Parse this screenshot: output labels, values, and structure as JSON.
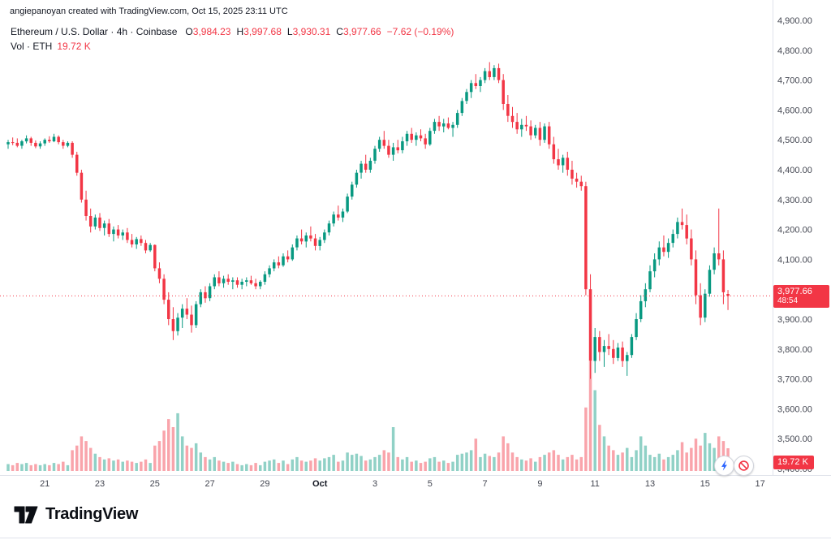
{
  "attribution": "angiepanoyan created with TradingView.com, Oct 15, 2025 23:11 UTC",
  "legend": {
    "series_title": "Ethereum / U.S. Dollar · 4h · Coinbase",
    "ohlc": {
      "o_label": "O",
      "o": "3,984.23",
      "h_label": "H",
      "h": "3,997.68",
      "l_label": "L",
      "l": "3,930.31",
      "c_label": "C",
      "c": "3,977.66",
      "change": "−7.62 (−0.19%)"
    },
    "volume_label": "Vol · ETH",
    "volume_value": "19.72 K"
  },
  "price_axis": {
    "labels": [
      "4,900.00",
      "4,800.00",
      "4,700.00",
      "4,600.00",
      "4,500.00",
      "4,400.00",
      "4,300.00",
      "4,200.00",
      "4,100.00",
      "4,000.00",
      "3,900.00",
      "3,800.00",
      "3,700.00",
      "3,600.00",
      "3,500.00",
      "3,400.00"
    ],
    "max": 4900,
    "min": 3400
  },
  "time_axis": [
    {
      "label": "21",
      "idx": 8
    },
    {
      "label": "23",
      "idx": 20
    },
    {
      "label": "25",
      "idx": 32
    },
    {
      "label": "27",
      "idx": 44
    },
    {
      "label": "29",
      "idx": 56
    },
    {
      "label": "Oct",
      "idx": 68,
      "bold": true
    },
    {
      "label": "3",
      "idx": 80
    },
    {
      "label": "5",
      "idx": 92
    },
    {
      "label": "7",
      "idx": 104
    },
    {
      "label": "9",
      "idx": 116
    },
    {
      "label": "11",
      "idx": 128
    },
    {
      "label": "13",
      "idx": 140
    },
    {
      "label": "15",
      "idx": 152
    },
    {
      "label": "17",
      "idx": 164
    }
  ],
  "price_badge": {
    "price": "3,977.66",
    "countdown": "48:54"
  },
  "volume_badge": "19.72 K",
  "footer": {
    "brand": "TradingView"
  },
  "colors": {
    "up": "#089981",
    "down": "#f23645",
    "axis_text": "#434651",
    "axis_line": "#e0e3eb",
    "badge": "#f23645"
  },
  "chart_data": {
    "type": "candlestick",
    "symbol": "Ethereum / U.S. Dollar",
    "exchange": "Coinbase",
    "interval": "4h",
    "volume_unit": "ETH",
    "current": {
      "open": 3984.23,
      "high": 3997.68,
      "low": 3930.31,
      "close": 3977.66,
      "change": -7.62,
      "change_pct": -0.19,
      "volume_k": 19.72
    },
    "price_range": [
      3400,
      4900
    ],
    "candle_format": [
      "open",
      "high",
      "low",
      "close",
      "volume_k_eth"
    ],
    "candles": [
      [
        4485,
        4500,
        4470,
        4492,
        6
      ],
      [
        4492,
        4508,
        4482,
        4490,
        5
      ],
      [
        4490,
        4505,
        4475,
        4480,
        7
      ],
      [
        4480,
        4500,
        4470,
        4495,
        6
      ],
      [
        4495,
        4515,
        4488,
        4505,
        7
      ],
      [
        4505,
        4510,
        4480,
        4490,
        5
      ],
      [
        4490,
        4498,
        4472,
        4478,
        6
      ],
      [
        4478,
        4495,
        4470,
        4488,
        5
      ],
      [
        4488,
        4505,
        4480,
        4500,
        6
      ],
      [
        4500,
        4512,
        4490,
        4495,
        5
      ],
      [
        4495,
        4520,
        4492,
        4510,
        7
      ],
      [
        4510,
        4515,
        4485,
        4492,
        6
      ],
      [
        4492,
        4500,
        4470,
        4480,
        8
      ],
      [
        4480,
        4495,
        4475,
        4490,
        5
      ],
      [
        4490,
        4495,
        4440,
        4450,
        18
      ],
      [
        4450,
        4460,
        4380,
        4390,
        22
      ],
      [
        4390,
        4400,
        4290,
        4300,
        30
      ],
      [
        4300,
        4330,
        4230,
        4245,
        26
      ],
      [
        4245,
        4270,
        4190,
        4210,
        20
      ],
      [
        4210,
        4250,
        4200,
        4240,
        15
      ],
      [
        4240,
        4255,
        4195,
        4205,
        12
      ],
      [
        4205,
        4230,
        4180,
        4220,
        10
      ],
      [
        4220,
        4235,
        4175,
        4185,
        11
      ],
      [
        4185,
        4210,
        4160,
        4200,
        9
      ],
      [
        4200,
        4215,
        4170,
        4180,
        10
      ],
      [
        4180,
        4200,
        4165,
        4190,
        8
      ],
      [
        4190,
        4205,
        4155,
        4165,
        9
      ],
      [
        4165,
        4185,
        4140,
        4150,
        8
      ],
      [
        4150,
        4175,
        4135,
        4168,
        7
      ],
      [
        4168,
        4180,
        4145,
        4155,
        8
      ],
      [
        4155,
        4165,
        4120,
        4130,
        10
      ],
      [
        4130,
        4155,
        4125,
        4148,
        7
      ],
      [
        4148,
        4150,
        4060,
        4070,
        22
      ],
      [
        4070,
        4090,
        4020,
        4035,
        26
      ],
      [
        4035,
        4050,
        3950,
        3965,
        35
      ],
      [
        3965,
        3990,
        3880,
        3900,
        45
      ],
      [
        3900,
        3940,
        3830,
        3860,
        38
      ],
      [
        3860,
        3920,
        3845,
        3905,
        50
      ],
      [
        3905,
        3950,
        3870,
        3935,
        30
      ],
      [
        3935,
        3970,
        3900,
        3915,
        22
      ],
      [
        3915,
        3945,
        3855,
        3880,
        20
      ],
      [
        3880,
        3960,
        3870,
        3950,
        24
      ],
      [
        3950,
        4000,
        3940,
        3990,
        16
      ],
      [
        3990,
        4010,
        3955,
        3970,
        12
      ],
      [
        3970,
        4020,
        3960,
        4010,
        10
      ],
      [
        4010,
        4050,
        4000,
        4040,
        12
      ],
      [
        4040,
        4060,
        4010,
        4020,
        9
      ],
      [
        4020,
        4045,
        4005,
        4035,
        8
      ],
      [
        4035,
        4050,
        4015,
        4025,
        7
      ],
      [
        4025,
        4040,
        4000,
        4030,
        8
      ],
      [
        4030,
        4040,
        4005,
        4015,
        6
      ],
      [
        4015,
        4035,
        4000,
        4025,
        5
      ],
      [
        4025,
        4040,
        4010,
        4030,
        6
      ],
      [
        4030,
        4045,
        4015,
        4020,
        5
      ],
      [
        4020,
        4035,
        4000,
        4010,
        7
      ],
      [
        4010,
        4030,
        4000,
        4025,
        5
      ],
      [
        4025,
        4060,
        4015,
        4050,
        8
      ],
      [
        4050,
        4080,
        4040,
        4070,
        9
      ],
      [
        4070,
        4100,
        4060,
        4090,
        10
      ],
      [
        4090,
        4110,
        4070,
        4080,
        7
      ],
      [
        4080,
        4120,
        4075,
        4110,
        9
      ],
      [
        4110,
        4130,
        4090,
        4100,
        6
      ],
      [
        4100,
        4150,
        4095,
        4140,
        10
      ],
      [
        4140,
        4180,
        4130,
        4170,
        12
      ],
      [
        4170,
        4200,
        4150,
        4160,
        9
      ],
      [
        4160,
        4190,
        4140,
        4180,
        8
      ],
      [
        4180,
        4210,
        4160,
        4170,
        9
      ],
      [
        4170,
        4185,
        4130,
        4145,
        11
      ],
      [
        4145,
        4175,
        4130,
        4165,
        9
      ],
      [
        4165,
        4200,
        4155,
        4190,
        11
      ],
      [
        4190,
        4230,
        4180,
        4220,
        12
      ],
      [
        4220,
        4260,
        4210,
        4250,
        14
      ],
      [
        4250,
        4280,
        4230,
        4240,
        8
      ],
      [
        4240,
        4270,
        4225,
        4260,
        9
      ],
      [
        4260,
        4320,
        4255,
        4310,
        16
      ],
      [
        4310,
        4360,
        4300,
        4350,
        14
      ],
      [
        4350,
        4400,
        4340,
        4390,
        15
      ],
      [
        4390,
        4430,
        4370,
        4420,
        13
      ],
      [
        4420,
        4450,
        4390,
        4400,
        9
      ],
      [
        4400,
        4440,
        4390,
        4430,
        10
      ],
      [
        4430,
        4480,
        4420,
        4470,
        12
      ],
      [
        4470,
        4510,
        4460,
        4500,
        14
      ],
      [
        4500,
        4530,
        4470,
        4480,
        18
      ],
      [
        4480,
        4500,
        4440,
        4450,
        16
      ],
      [
        4450,
        4490,
        4430,
        4475,
        38
      ],
      [
        4475,
        4500,
        4455,
        4465,
        12
      ],
      [
        4465,
        4510,
        4455,
        4495,
        10
      ],
      [
        4495,
        4530,
        4480,
        4520,
        12
      ],
      [
        4520,
        4540,
        4490,
        4500,
        8
      ],
      [
        4500,
        4525,
        4480,
        4515,
        9
      ],
      [
        4515,
        4535,
        4495,
        4505,
        7
      ],
      [
        4505,
        4520,
        4470,
        4485,
        8
      ],
      [
        4485,
        4540,
        4480,
        4530,
        11
      ],
      [
        4530,
        4570,
        4520,
        4560,
        12
      ],
      [
        4560,
        4580,
        4530,
        4545,
        8
      ],
      [
        4545,
        4570,
        4525,
        4555,
        9
      ],
      [
        4555,
        4575,
        4535,
        4540,
        7
      ],
      [
        4540,
        4560,
        4510,
        4550,
        8
      ],
      [
        4550,
        4600,
        4540,
        4590,
        14
      ],
      [
        4590,
        4640,
        4580,
        4630,
        15
      ],
      [
        4630,
        4670,
        4620,
        4660,
        16
      ],
      [
        4660,
        4700,
        4640,
        4690,
        18
      ],
      [
        4690,
        4720,
        4670,
        4680,
        28
      ],
      [
        4680,
        4710,
        4660,
        4700,
        12
      ],
      [
        4700,
        4740,
        4690,
        4730,
        15
      ],
      [
        4730,
        4760,
        4700,
        4710,
        13
      ],
      [
        4710,
        4750,
        4700,
        4740,
        12
      ],
      [
        4740,
        4755,
        4690,
        4700,
        16
      ],
      [
        4700,
        4720,
        4600,
        4620,
        30
      ],
      [
        4620,
        4650,
        4560,
        4580,
        24
      ],
      [
        4580,
        4610,
        4540,
        4560,
        16
      ],
      [
        4560,
        4590,
        4520,
        4535,
        12
      ],
      [
        4535,
        4570,
        4510,
        4550,
        10
      ],
      [
        4550,
        4580,
        4530,
        4545,
        9
      ],
      [
        4545,
        4565,
        4500,
        4515,
        11
      ],
      [
        4515,
        4550,
        4505,
        4540,
        8
      ],
      [
        4540,
        4560,
        4480,
        4500,
        12
      ],
      [
        4500,
        4555,
        4490,
        4545,
        14
      ],
      [
        4545,
        4560,
        4470,
        4485,
        16
      ],
      [
        4485,
        4510,
        4420,
        4435,
        18
      ],
      [
        4435,
        4470,
        4400,
        4415,
        14
      ],
      [
        4415,
        4450,
        4390,
        4440,
        10
      ],
      [
        4440,
        4460,
        4380,
        4400,
        12
      ],
      [
        4400,
        4430,
        4350,
        4370,
        14
      ],
      [
        4370,
        4390,
        4340,
        4360,
        10
      ],
      [
        4360,
        4380,
        4330,
        4345,
        12
      ],
      [
        4345,
        4360,
        3980,
        4000,
        55
      ],
      [
        4000,
        4050,
        3700,
        3760,
        95
      ],
      [
        3760,
        3870,
        3720,
        3840,
        70
      ],
      [
        3840,
        3860,
        3760,
        3790,
        40
      ],
      [
        3790,
        3830,
        3740,
        3810,
        30
      ],
      [
        3810,
        3850,
        3780,
        3800,
        22
      ],
      [
        3800,
        3830,
        3750,
        3770,
        18
      ],
      [
        3770,
        3820,
        3760,
        3805,
        14
      ],
      [
        3805,
        3825,
        3740,
        3760,
        16
      ],
      [
        3760,
        3790,
        3710,
        3780,
        20
      ],
      [
        3780,
        3850,
        3770,
        3840,
        12
      ],
      [
        3840,
        3920,
        3830,
        3900,
        18
      ],
      [
        3900,
        3980,
        3890,
        3960,
        30
      ],
      [
        3960,
        4020,
        3940,
        4000,
        22
      ],
      [
        4000,
        4080,
        3990,
        4060,
        14
      ],
      [
        4060,
        4120,
        4040,
        4100,
        12
      ],
      [
        4100,
        4160,
        4080,
        4140,
        15
      ],
      [
        4140,
        4180,
        4110,
        4125,
        10
      ],
      [
        4125,
        4170,
        4105,
        4155,
        12
      ],
      [
        4155,
        4200,
        4140,
        4185,
        14
      ],
      [
        4185,
        4240,
        4170,
        4225,
        18
      ],
      [
        4225,
        4270,
        4200,
        4215,
        25
      ],
      [
        4215,
        4250,
        4150,
        4170,
        16
      ],
      [
        4170,
        4200,
        4080,
        4100,
        20
      ],
      [
        4100,
        4130,
        3950,
        3980,
        28
      ],
      [
        3980,
        4020,
        3880,
        3905,
        22
      ],
      [
        3905,
        4000,
        3890,
        3985,
        33
      ],
      [
        3985,
        4080,
        3975,
        4065,
        24
      ],
      [
        4065,
        4140,
        4050,
        4120,
        20
      ],
      [
        4120,
        4270,
        4080,
        4100,
        30
      ],
      [
        4100,
        4130,
        3950,
        3990,
        26
      ],
      [
        3984.23,
        3997.68,
        3930.31,
        3977.66,
        19.72
      ]
    ]
  }
}
